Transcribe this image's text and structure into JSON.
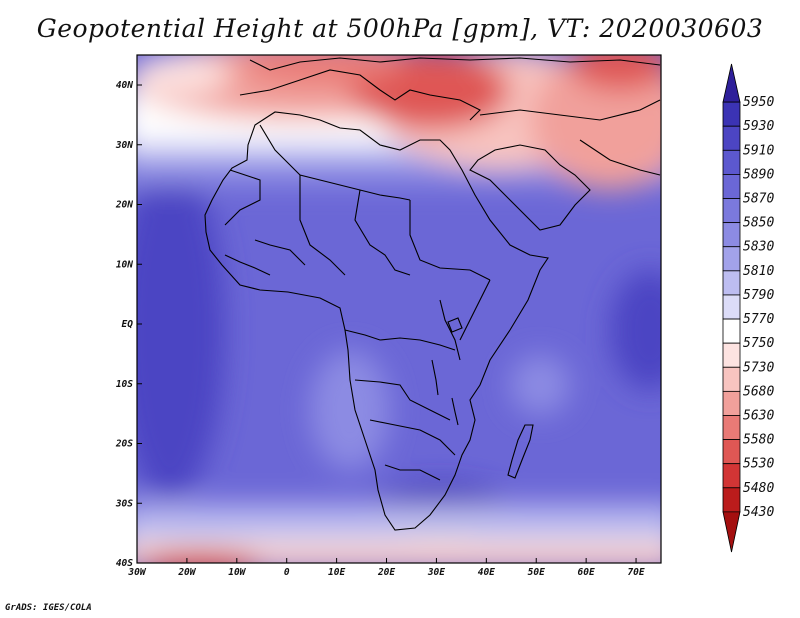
{
  "title": "Geopotential Height at 500hPa [gpm], VT: 2020030603",
  "credit": "GrADS: IGES/COLA",
  "map": {
    "lon_range": [
      -30,
      75
    ],
    "lat_range": [
      -40,
      45
    ],
    "lon_ticks": [
      "30W",
      "20W",
      "10W",
      "0",
      "10E",
      "20E",
      "30E",
      "40E",
      "50E",
      "60E",
      "70E"
    ],
    "lat_ticks": [
      "40N",
      "30N",
      "20N",
      "10N",
      "EQ",
      "10S",
      "20S",
      "30S",
      "40S"
    ]
  },
  "colorbar": {
    "levels": [
      "5950",
      "5930",
      "5910",
      "5890",
      "5870",
      "5850",
      "5830",
      "5810",
      "5790",
      "5770",
      "5750",
      "5730",
      "5680",
      "5630",
      "5580",
      "5530",
      "5480",
      "5430"
    ],
    "colors": [
      "#2e1f9a",
      "#3b33b4",
      "#4c45c3",
      "#5c58cf",
      "#6b67d6",
      "#7b79dd",
      "#8c8be3",
      "#a2a2ea",
      "#bdbdf1",
      "#dcdcf8",
      "#ffffff",
      "#fde3e1",
      "#f8c4c0",
      "#f1a09b",
      "#e97a76",
      "#df5754",
      "#d23535",
      "#bb1c1c",
      "#a40f0f"
    ]
  }
}
